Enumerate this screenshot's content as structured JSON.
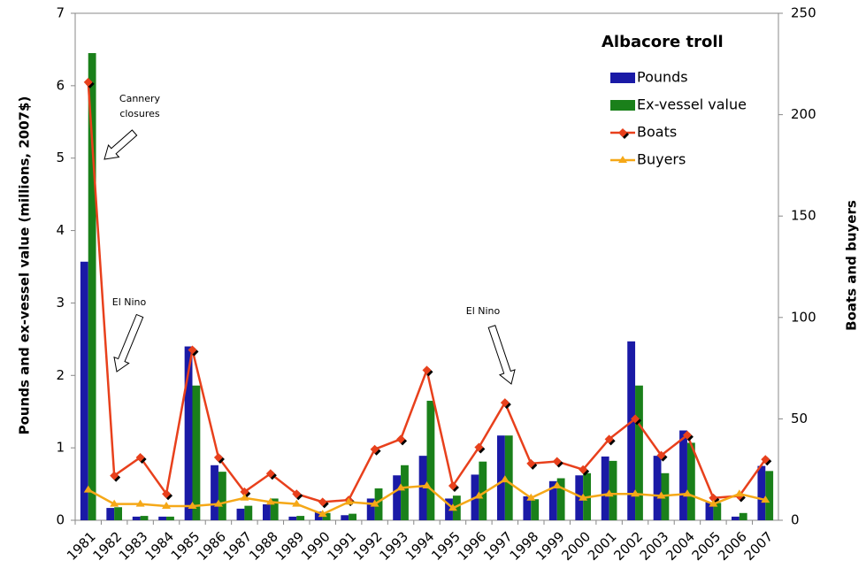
{
  "chart_data": {
    "type": "bar-line",
    "y_label": "Pounds and ex-vessel value (millions, 2007$)",
    "y2_label": "Boats and buyers",
    "legend_title": "Albacore troll",
    "categories": [
      "1981",
      "1982",
      "1983",
      "1984",
      "1985",
      "1986",
      "1987",
      "1988",
      "1989",
      "1990",
      "1991",
      "1992",
      "1993",
      "1994",
      "1995",
      "1996",
      "1997",
      "1998",
      "1999",
      "2000",
      "2001",
      "2002",
      "2003",
      "2004",
      "2005",
      "2006",
      "2007"
    ],
    "series": [
      {
        "name": "Pounds",
        "type": "bar",
        "color": "#1a1aa6",
        "values": [
          3.57,
          0.17,
          0.05,
          0.05,
          2.4,
          0.76,
          0.16,
          0.22,
          0.05,
          0.12,
          0.07,
          0.3,
          0.62,
          0.89,
          0.3,
          0.63,
          1.17,
          0.33,
          0.54,
          0.62,
          0.88,
          2.47,
          0.89,
          1.24,
          0.25,
          0.05,
          0.75
        ]
      },
      {
        "name": "Ex-vessel value",
        "type": "bar",
        "color": "#1a801a",
        "values": [
          6.45,
          0.18,
          0.06,
          0.05,
          1.86,
          0.67,
          0.2,
          0.3,
          0.06,
          0.1,
          0.09,
          0.44,
          0.76,
          1.65,
          0.34,
          0.81,
          1.17,
          0.29,
          0.58,
          0.65,
          0.82,
          1.86,
          0.65,
          1.07,
          0.24,
          0.1,
          0.68
        ]
      },
      {
        "name": "Boats",
        "type": "line",
        "axis": "y2",
        "marker": "diamond",
        "color": "#e8401c",
        "values": [
          216,
          22,
          31,
          13,
          84,
          31,
          14,
          23,
          13,
          9,
          10,
          35,
          40,
          74,
          17,
          36,
          58,
          28,
          29,
          25,
          40,
          50,
          32,
          42,
          11,
          12,
          30
        ]
      },
      {
        "name": "Buyers",
        "type": "line",
        "axis": "y2",
        "marker": "triangle",
        "color": "#f5a818",
        "values": [
          15,
          8,
          8,
          7,
          7,
          8,
          11,
          9,
          8,
          3,
          9,
          8,
          16,
          17,
          6,
          12,
          20,
          11,
          17,
          11,
          13,
          13,
          12,
          13,
          8,
          13,
          10
        ]
      }
    ],
    "ylim": [
      0,
      7
    ],
    "yticks": [
      0,
      1,
      2,
      3,
      4,
      5,
      6,
      7
    ],
    "y2lim": [
      0,
      250
    ],
    "y2ticks": [
      0,
      50,
      100,
      150,
      200,
      250
    ],
    "annotations": [
      {
        "lines": [
          "Cannery",
          "closures"
        ]
      },
      {
        "lines": [
          "El Nino"
        ]
      },
      {
        "lines": [
          "El Nino"
        ]
      }
    ]
  }
}
